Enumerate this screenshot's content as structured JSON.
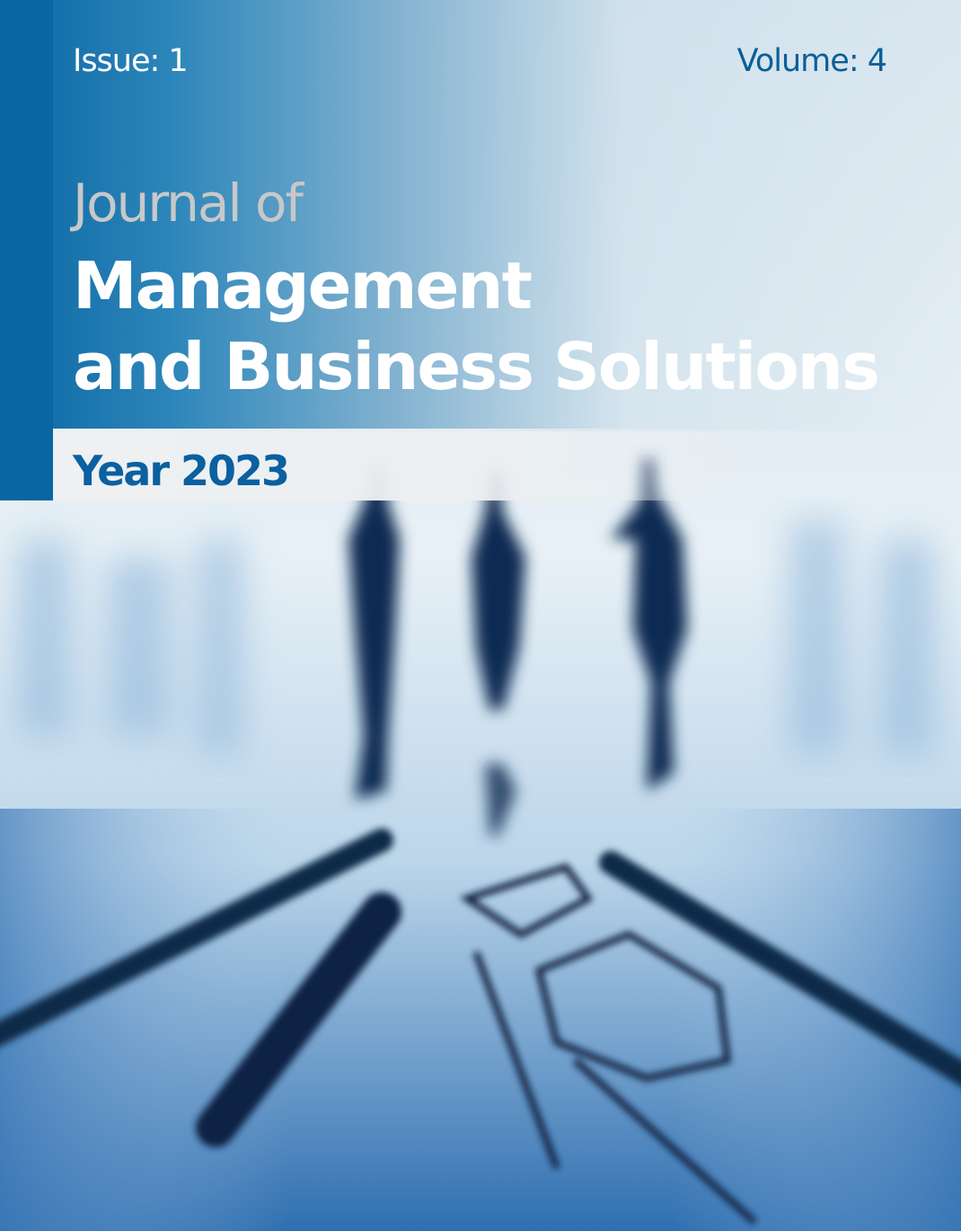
{
  "cover": {
    "issue": "Issue: 1",
    "volume": "Volume: 4",
    "journal_of": "Journal of",
    "title_line1": "Management",
    "title_line2": "and Business Solutions",
    "year": "Year 2023"
  },
  "colors": {
    "brand_blue": "#0a66a3",
    "title_white": "#ffffff",
    "subtitle_gray": "#c8c8c8"
  }
}
